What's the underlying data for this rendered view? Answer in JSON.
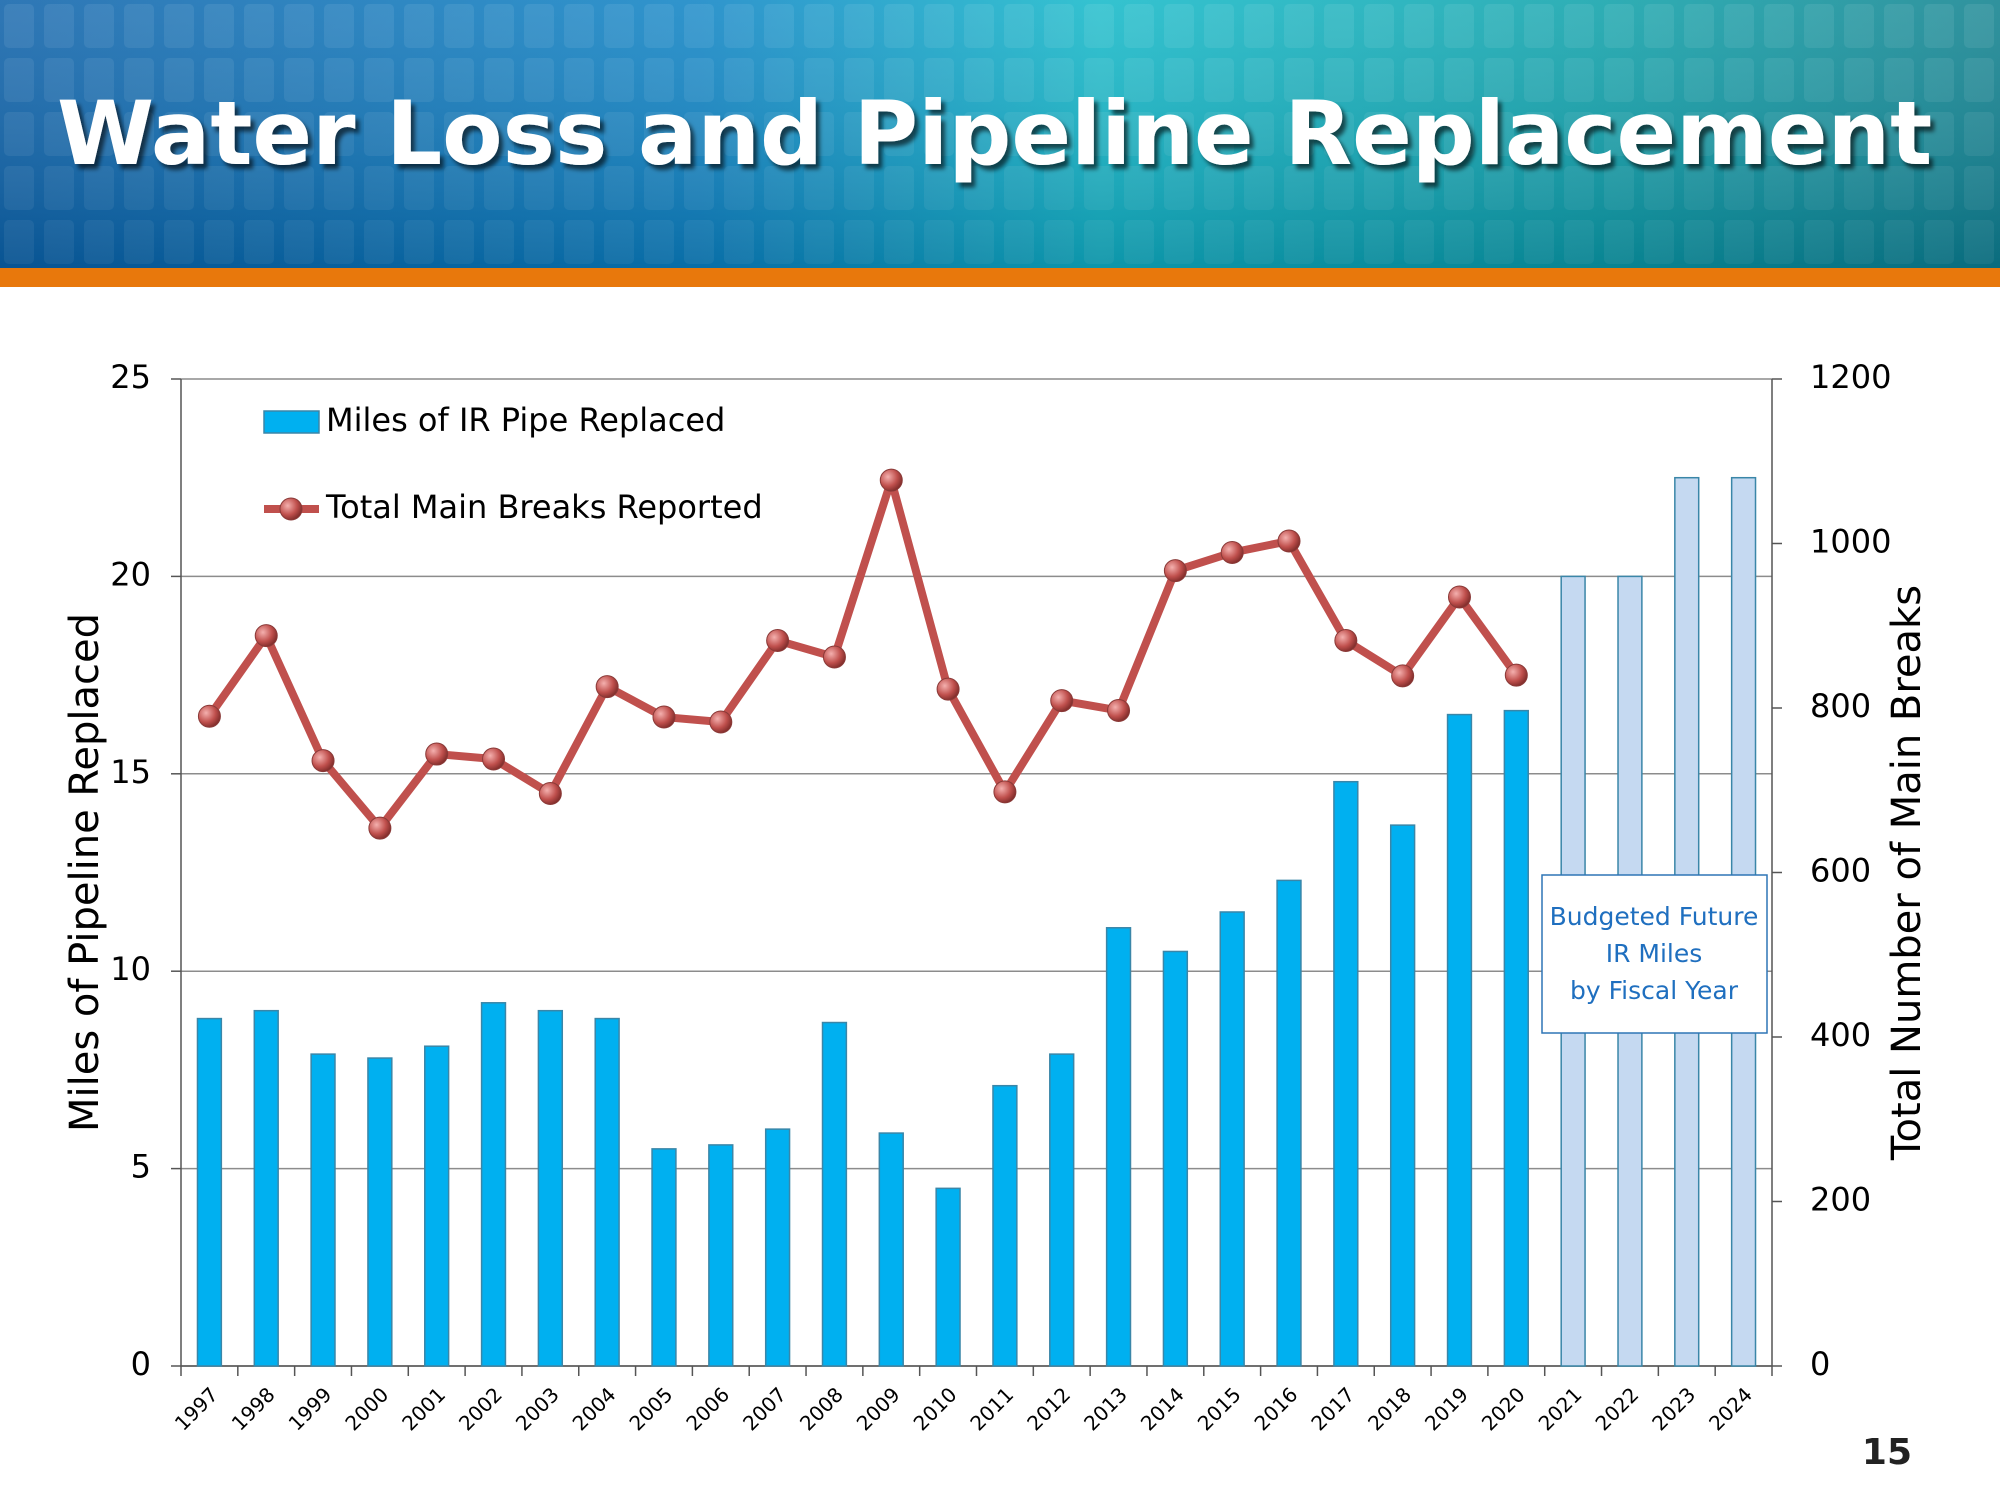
{
  "chart_data": {
    "type": "bar",
    "title": "Water Loss and Pipeline Replacement",
    "y_label": "Miles of Pipeline Replaced",
    "y2_label": "Total Number of Main Breaks",
    "categories": [
      "1997",
      "1998",
      "1999",
      "2000",
      "2001",
      "2002",
      "2003",
      "2004",
      "2005",
      "2006",
      "2007",
      "2008",
      "2009",
      "2010",
      "2011",
      "2012",
      "2013",
      "2014",
      "2015",
      "2016",
      "2017",
      "2018",
      "2019",
      "2020",
      "2021",
      "2022",
      "2023",
      "2024"
    ],
    "series": [
      {
        "name": "Miles of IR Pipe Replaced",
        "type": "bar",
        "axis": "y",
        "color": "#00b0f0",
        "colors": [
          "#00b0f0",
          "#00b0f0",
          "#00b0f0",
          "#00b0f0",
          "#00b0f0",
          "#00b0f0",
          "#00b0f0",
          "#00b0f0",
          "#00b0f0",
          "#00b0f0",
          "#00b0f0",
          "#00b0f0",
          "#00b0f0",
          "#00b0f0",
          "#00b0f0",
          "#00b0f0",
          "#00b0f0",
          "#00b0f0",
          "#00b0f0",
          "#00b0f0",
          "#00b0f0",
          "#00b0f0",
          "#00b0f0",
          "#00b0f0",
          "#c5d9f1",
          "#c5d9f1",
          "#c5d9f1",
          "#c5d9f1"
        ],
        "values": [
          8.8,
          9.0,
          7.9,
          7.8,
          8.1,
          9.2,
          9.0,
          8.8,
          5.5,
          5.6,
          6.0,
          8.7,
          5.9,
          4.5,
          7.1,
          7.9,
          11.1,
          10.5,
          11.5,
          12.3,
          14.8,
          13.7,
          16.5,
          16.6,
          20,
          20,
          22.5,
          22.5
        ]
      },
      {
        "name": "Total Main Breaks Reported",
        "type": "line",
        "axis": "y2",
        "color": "#c0504d",
        "values": [
          790,
          888,
          736,
          654,
          744,
          738,
          696,
          826,
          789,
          783,
          882,
          862,
          1077,
          823,
          698,
          809,
          797,
          967,
          989,
          1003,
          882,
          839,
          935,
          840,
          null,
          null,
          null,
          null
        ]
      }
    ],
    "ylim": [
      0,
      25
    ],
    "yticks": [
      0,
      5,
      10,
      15,
      20,
      25
    ],
    "y2lim": [
      0,
      1200
    ],
    "y2ticks": [
      0,
      200,
      400,
      600,
      800,
      1000,
      1200
    ],
    "grid": true,
    "legend": "top-left",
    "annotation": [
      "Budgeted Future",
      "IR Miles",
      "by Fiscal Year"
    ]
  },
  "slide": {
    "page_number": 15
  }
}
